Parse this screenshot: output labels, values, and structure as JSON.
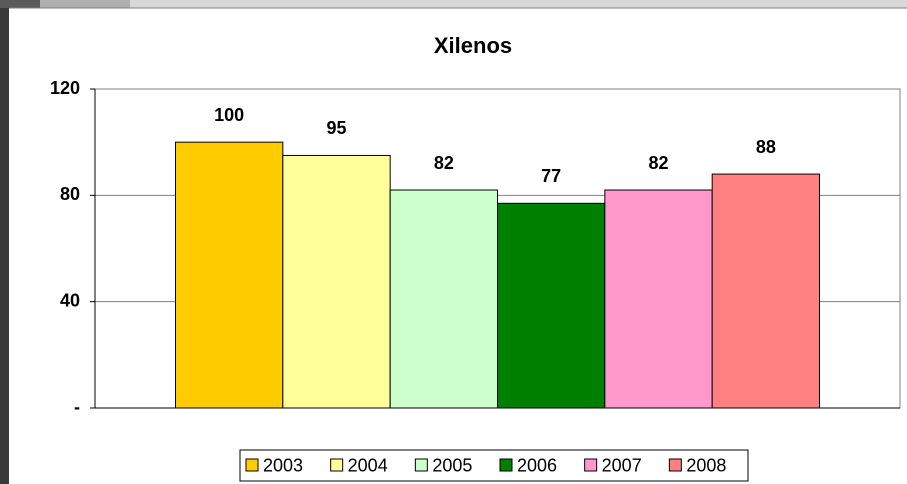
{
  "chart_data": {
    "type": "bar",
    "title": "Xilenos",
    "categories": [
      null
    ],
    "series": [
      {
        "name": "2003",
        "color": "#FFCC00",
        "values": [
          100
        ]
      },
      {
        "name": "2004",
        "color": "#FFFF99",
        "values": [
          95
        ]
      },
      {
        "name": "2005",
        "color": "#CCFFCC",
        "values": [
          82
        ]
      },
      {
        "name": "2006",
        "color": "#008000",
        "values": [
          77
        ]
      },
      {
        "name": "2007",
        "color": "#FF99CC",
        "values": [
          82
        ]
      },
      {
        "name": "2008",
        "color": "#FF8080",
        "values": [
          88
        ]
      }
    ],
    "ylim": [
      0,
      120
    ],
    "yticks": [
      {
        "value": 0,
        "label": "-"
      },
      40,
      80,
      120
    ],
    "grid": true,
    "legend": "bottom"
  }
}
